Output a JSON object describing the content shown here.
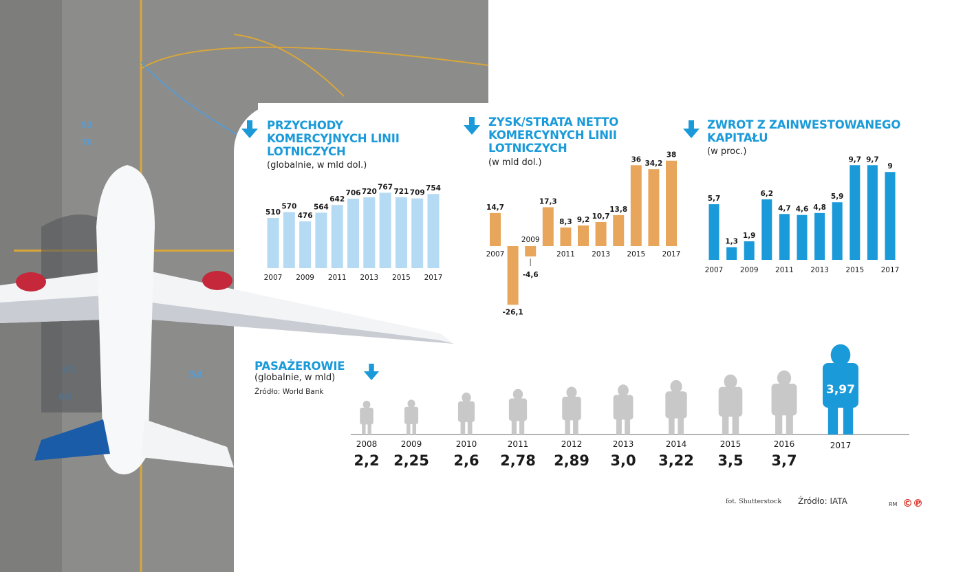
{
  "colors": {
    "accent": "#1a9ad9",
    "revenue_bar": "#b5daf3",
    "profit_bar": "#e8a65d",
    "roic_bar": "#1a9ad9",
    "passenger_gray": "#c8c8c8",
    "passenger_highlight": "#1a9ad9"
  },
  "charts": {
    "revenue": {
      "title_lines": [
        "PRZYCHODY",
        "KOMERCYJNYCH LINII",
        "LOTNICZYCH"
      ],
      "subtitle": "(globalnie, w mld dol.)"
    },
    "profit": {
      "title_lines": [
        "ZYSK/STRATA NETTO",
        "KOMERCYNYCH LINII",
        "LOTNICZYCH"
      ],
      "subtitle": "(w mld dol.)"
    },
    "roic": {
      "title_lines": [
        "ZWROT Z ZAINWESTOWANEGO",
        "KAPITAŁU"
      ],
      "subtitle": "(w proc.)"
    },
    "passengers": {
      "title": "PASAŻEROWIE",
      "subtitle": "(globalnie, w mld)",
      "source": "Źródło: World Bank"
    }
  },
  "chart_data": [
    {
      "type": "bar",
      "title": "PRZYCHODY KOMERCYJNYCH LINII LOTNICZYCH",
      "subtitle": "(globalnie, w mld dol.)",
      "categories": [
        "2007",
        "2008",
        "2009",
        "2010",
        "2011",
        "2012",
        "2013",
        "2014",
        "2015",
        "2016",
        "2017"
      ],
      "tick_labels": [
        "2007",
        "2009",
        "2011",
        "2013",
        "2015",
        "2017"
      ],
      "values": [
        510,
        570,
        476,
        564,
        642,
        706,
        720,
        767,
        721,
        709,
        754
      ],
      "value_labels": [
        "510",
        "570",
        "476",
        "564",
        "642",
        "706",
        "720",
        "767",
        "721",
        "709",
        "754"
      ]
    },
    {
      "type": "bar",
      "title": "ZYSK/STRATA NETTO KOMERCYNYCH LINII LOTNICZYCH",
      "subtitle": "(w mld dol.)",
      "categories": [
        "2007",
        "2008",
        "2009",
        "2010",
        "2011",
        "2012",
        "2013",
        "2014",
        "2015",
        "2016",
        "2017"
      ],
      "tick_labels": [
        "2007",
        "2009",
        "2011",
        "2013",
        "2015",
        "2017"
      ],
      "values": [
        14.7,
        -26.1,
        -4.6,
        17.3,
        8.3,
        9.2,
        10.7,
        13.8,
        36,
        34.2,
        38
      ],
      "value_labels": [
        "14,7",
        "-26,1",
        "-4,6",
        "17,3",
        "8,3",
        "9,2",
        "10,7",
        "13,8",
        "36",
        "34,2",
        "38"
      ]
    },
    {
      "type": "bar",
      "title": "ZWROT Z ZAINWESTOWANEGO KAPITAŁU",
      "subtitle": "(w proc.)",
      "categories": [
        "2007",
        "2008",
        "2009",
        "2010",
        "2011",
        "2012",
        "2013",
        "2014",
        "2015",
        "2016",
        "2017"
      ],
      "tick_labels": [
        "2007",
        "2009",
        "2011",
        "2013",
        "2015",
        "2017"
      ],
      "values": [
        5.7,
        1.3,
        1.9,
        6.2,
        4.7,
        4.6,
        4.8,
        5.9,
        9.7,
        9.7,
        9
      ],
      "value_labels": [
        "5,7",
        "1,3",
        "1,9",
        "6,2",
        "4,7",
        "4,6",
        "4,8",
        "5,9",
        "9,7",
        "9,7",
        "9"
      ]
    },
    {
      "type": "bar",
      "title": "PASAŻEROWIE",
      "subtitle": "(globalnie, w mld)",
      "categories": [
        "2008",
        "2009",
        "2010",
        "2011",
        "2012",
        "2013",
        "2014",
        "2015",
        "2016",
        "2017"
      ],
      "values": [
        2.2,
        2.25,
        2.6,
        2.78,
        2.89,
        3.0,
        3.22,
        3.5,
        3.7,
        3.97
      ],
      "value_labels": [
        "2,2",
        "2,25",
        "2,6",
        "2,78",
        "2,89",
        "3,0",
        "3,22",
        "3,5",
        "3,7",
        "3,97"
      ]
    }
  ],
  "footer": {
    "photo_credit": "fot. Shutterstock",
    "source": "Źródło: IATA",
    "author": "RM",
    "logo_text": "©℗"
  },
  "photo": {
    "runway_markings": [
      "91",
      "T6",
      "65",
      "54",
      "60",
      "75"
    ]
  }
}
